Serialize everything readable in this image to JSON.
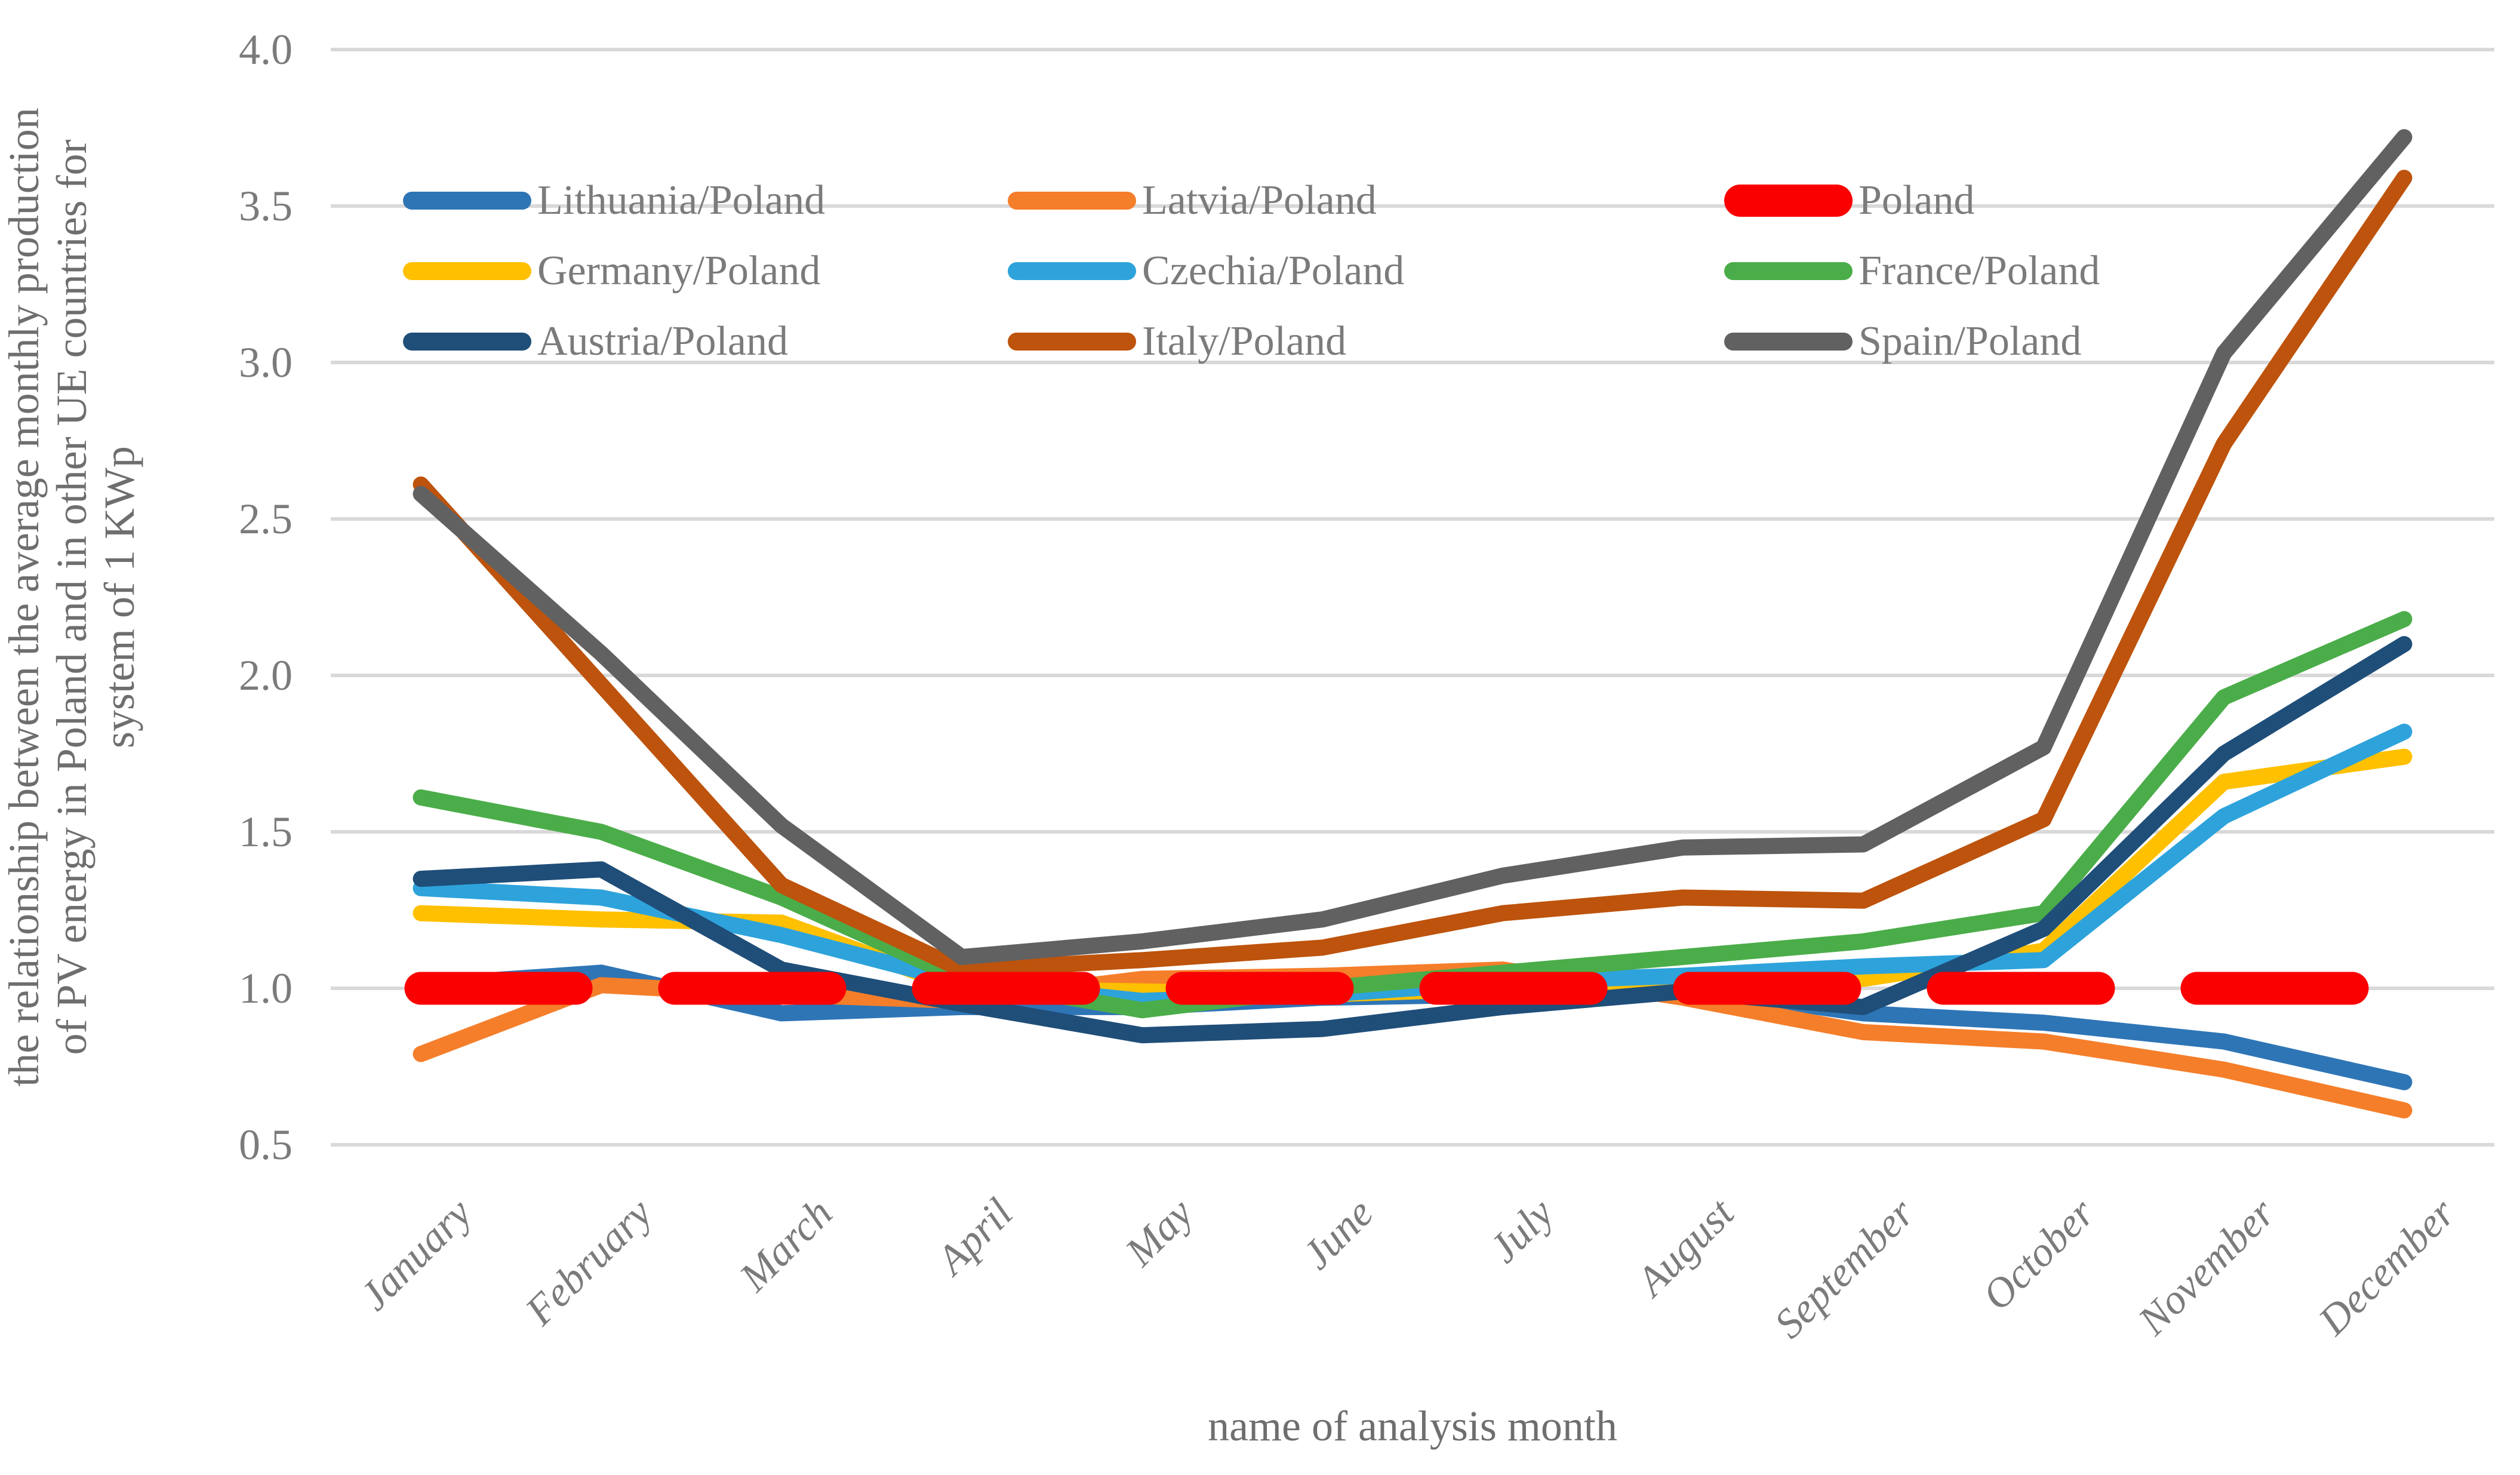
{
  "chart_data": {
    "type": "line",
    "title": "",
    "xlabel": "name of analysis month",
    "ylabel_lines": [
      "the relationship between the average monthly production",
      "of PV energy in Poland and in other UE countries for",
      "system of 1 KWp"
    ],
    "categories": [
      "January",
      "February",
      "March",
      "April",
      "May",
      "June",
      "July",
      "August",
      "September",
      "October",
      "November",
      "December"
    ],
    "y_ticks": [
      "4.0",
      "3.5",
      "3.0",
      "2.5",
      "2.0",
      "1.5",
      "1.0",
      "0.5"
    ],
    "ylim": [
      0.5,
      4.0
    ],
    "grid": "horizontal-only",
    "gridline_color": "#d9d9d9",
    "legend_position": "top-inside-3x3",
    "text_color": "#7b7b7b",
    "series": [
      {
        "name": "Lithuania/Poland",
        "color": "#2E75B6",
        "style": "solid",
        "values": [
          1.01,
          1.05,
          0.92,
          0.94,
          0.94,
          0.97,
          0.98,
          1.0,
          0.92,
          0.89,
          0.83,
          0.7
        ]
      },
      {
        "name": "Latvia/Poland",
        "color": "#F57E2A",
        "style": "solid",
        "values": [
          0.79,
          1.01,
          0.98,
          0.96,
          1.03,
          1.04,
          1.06,
          0.97,
          0.86,
          0.83,
          0.74,
          0.61
        ]
      },
      {
        "name": "Poland",
        "color": "#FA0000",
        "style": "dashed",
        "thick": true,
        "values": [
          1.0,
          1.0,
          1.0,
          1.0,
          1.0,
          1.0,
          1.0,
          1.0,
          1.0,
          1.0,
          1.0,
          1.0
        ]
      },
      {
        "name": "Germany/Poland",
        "color": "#FFC000",
        "style": "solid",
        "values": [
          1.24,
          1.22,
          1.21,
          1.0,
          0.99,
          0.98,
          1.0,
          1.02,
          1.03,
          1.12,
          1.66,
          1.74
        ]
      },
      {
        "name": "Czechia/Poland",
        "color": "#2EA3DB",
        "style": "solid",
        "values": [
          1.32,
          1.29,
          1.17,
          1.02,
          0.96,
          0.98,
          1.02,
          1.04,
          1.07,
          1.09,
          1.55,
          1.82
        ]
      },
      {
        "name": "France/Poland",
        "color": "#4BAD49",
        "style": "solid",
        "values": [
          1.61,
          1.5,
          1.29,
          1.03,
          0.93,
          1.0,
          1.05,
          1.1,
          1.15,
          1.24,
          1.93,
          2.18
        ]
      },
      {
        "name": "Austria/Poland",
        "color": "#1F4E79",
        "style": "solid",
        "values": [
          1.35,
          1.38,
          1.06,
          0.95,
          0.85,
          0.87,
          0.94,
          0.99,
          0.94,
          1.19,
          1.75,
          2.1
        ]
      },
      {
        "name": "Italy/Poland",
        "color": "#BD530C",
        "style": "solid",
        "values": [
          2.61,
          1.97,
          1.33,
          1.06,
          1.09,
          1.13,
          1.24,
          1.29,
          1.28,
          1.54,
          2.74,
          3.59
        ]
      },
      {
        "name": "Spain/Poland",
        "color": "#616161",
        "style": "solid",
        "values": [
          2.58,
          2.07,
          1.52,
          1.1,
          1.15,
          1.22,
          1.36,
          1.45,
          1.46,
          1.77,
          3.03,
          3.72
        ]
      }
    ],
    "draw_order": [
      0,
      1,
      3,
      4,
      5,
      6,
      7,
      8,
      2
    ]
  }
}
